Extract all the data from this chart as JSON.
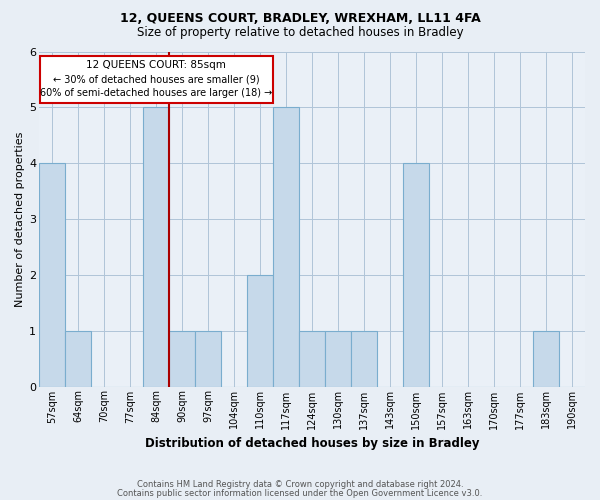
{
  "title1": "12, QUEENS COURT, BRADLEY, WREXHAM, LL11 4FA",
  "title2": "Size of property relative to detached houses in Bradley",
  "xlabel": "Distribution of detached houses by size in Bradley",
  "ylabel": "Number of detached properties",
  "categories": [
    "57sqm",
    "64sqm",
    "70sqm",
    "77sqm",
    "84sqm",
    "90sqm",
    "97sqm",
    "104sqm",
    "110sqm",
    "117sqm",
    "124sqm",
    "130sqm",
    "137sqm",
    "143sqm",
    "150sqm",
    "157sqm",
    "163sqm",
    "170sqm",
    "177sqm",
    "183sqm",
    "190sqm"
  ],
  "values": [
    4,
    1,
    0,
    0,
    5,
    1,
    1,
    0,
    2,
    5,
    1,
    1,
    1,
    0,
    4,
    0,
    0,
    0,
    0,
    1,
    0
  ],
  "bar_color": "#c6d9ea",
  "bar_edge_color": "#7aadce",
  "red_line_index": 4,
  "ylim_max": 6,
  "yticks": [
    0,
    1,
    2,
    3,
    4,
    5,
    6
  ],
  "annotation_title": "12 QUEENS COURT: 85sqm",
  "annotation_line1": "← 30% of detached houses are smaller (9)",
  "annotation_line2": "60% of semi-detached houses are larger (18) →",
  "footer1": "Contains HM Land Registry data © Crown copyright and database right 2024.",
  "footer2": "Contains public sector information licensed under the Open Government Licence v3.0.",
  "bg_color": "#e8eef5",
  "plot_bg_color": "#eaf0f7",
  "grid_color": "#b0c4d8",
  "ann_box_color": "#ffffff",
  "ann_border_color": "#cc0000",
  "red_line_color": "#aa0000",
  "title_fontsize": 9,
  "subtitle_fontsize": 8.5,
  "tick_fontsize": 7,
  "ylabel_fontsize": 8,
  "xlabel_fontsize": 8.5,
  "footer_fontsize": 6,
  "ann_fontsize": 7.5
}
